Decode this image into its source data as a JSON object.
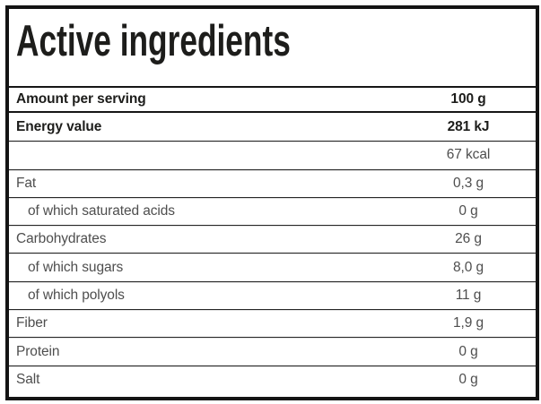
{
  "title": "Active ingredients",
  "table": {
    "header": {
      "label": "Amount per serving",
      "value": "100 g"
    },
    "rows": [
      {
        "label": "Energy value",
        "value": "281 kJ"
      },
      {
        "label": "",
        "value": "67 kcal"
      },
      {
        "label": "Fat",
        "value": "0,3 g"
      },
      {
        "label": "of which saturated acids",
        "value": "0 g"
      },
      {
        "label": "Carbohydrates",
        "value": "26 g"
      },
      {
        "label": "of which sugars",
        "value": "8,0 g"
      },
      {
        "label": "of which polyols",
        "value": "11 g"
      },
      {
        "label": "Fiber",
        "value": "1,9 g"
      },
      {
        "label": "Protein",
        "value": "0 g"
      },
      {
        "label": "Salt",
        "value": "0 g"
      }
    ]
  },
  "colors": {
    "border": "#141414",
    "bold_text": "#1d1d1b",
    "regular_text": "#4e4e4e",
    "separator_dark": "#262626",
    "separator_light": "#e0e0e0",
    "background": "#ffffff"
  }
}
